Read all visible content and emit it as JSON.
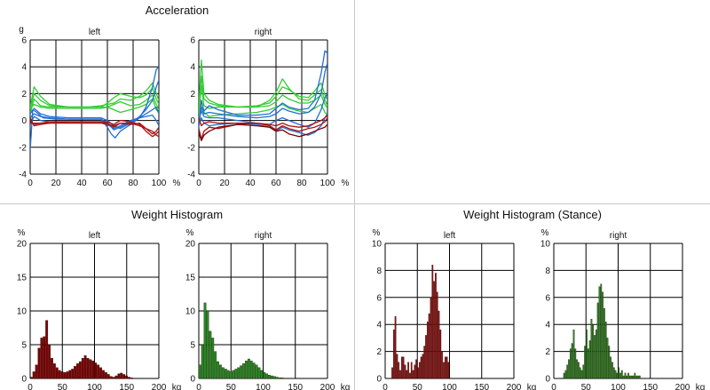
{
  "titles": {
    "acceleration": "Acceleration",
    "weight_histogram": "Weight Histogram",
    "weight_histogram_stance": "Weight Histogram (Stance)"
  },
  "colors": {
    "green": "#33cc33",
    "blue": "#1f6fd6",
    "red": "#aa1111",
    "dark_red": "#7a0000",
    "grid": "#000000"
  },
  "chart_data": [
    {
      "id": "accel-left",
      "type": "line",
      "title": "left",
      "ylabel": "g",
      "xunit": "%",
      "xlim": [
        0,
        100
      ],
      "ylim": [
        -4,
        6
      ],
      "xticks": [
        0,
        20,
        40,
        60,
        80,
        100
      ],
      "yticks": [
        -4,
        -2,
        0,
        2,
        4,
        6
      ],
      "grid": true,
      "series": [
        {
          "color": "#33cc33",
          "x": [
            0,
            3,
            8,
            15,
            30,
            45,
            55,
            60,
            65,
            70,
            78,
            85,
            90,
            95,
            98,
            100
          ],
          "y": [
            1.0,
            2.5,
            1.8,
            1.2,
            1.0,
            1.0,
            1.1,
            1.2,
            1.3,
            1.6,
            1.5,
            1.8,
            2.2,
            2.8,
            2.0,
            1.5
          ]
        },
        {
          "color": "#33cc33",
          "x": [
            0,
            3,
            8,
            15,
            30,
            45,
            55,
            60,
            65,
            70,
            78,
            85,
            90,
            95,
            98,
            100
          ],
          "y": [
            0.8,
            2.0,
            1.5,
            1.1,
            1.0,
            1.0,
            1.0,
            1.3,
            1.7,
            2.0,
            1.8,
            1.7,
            1.9,
            2.4,
            1.6,
            1.2
          ]
        },
        {
          "color": "#33cc33",
          "x": [
            0,
            3,
            8,
            15,
            30,
            45,
            55,
            60,
            65,
            70,
            78,
            85,
            90,
            95,
            98,
            100
          ],
          "y": [
            0.5,
            1.6,
            1.1,
            1.0,
            1.0,
            1.0,
            1.0,
            1.0,
            1.2,
            1.4,
            1.1,
            1.2,
            1.5,
            1.9,
            1.2,
            0.8
          ]
        },
        {
          "color": "#33cc33",
          "x": [
            0,
            3,
            8,
            15,
            30,
            45,
            55,
            60,
            65,
            70,
            78,
            85,
            90,
            95,
            98,
            100
          ],
          "y": [
            0.9,
            1.2,
            1.0,
            0.9,
            0.9,
            0.9,
            0.9,
            1.0,
            0.8,
            0.6,
            0.8,
            1.0,
            1.2,
            1.6,
            0.8,
            0.6
          ]
        },
        {
          "color": "#1f6fd6",
          "x": [
            0,
            2,
            5,
            10,
            20,
            40,
            55,
            60,
            63,
            66,
            70,
            78,
            85,
            90,
            95,
            98,
            100
          ],
          "y": [
            -2.2,
            0.8,
            0.6,
            0.2,
            0.1,
            0.1,
            0.1,
            -0.5,
            -1.0,
            -1.3,
            -0.8,
            -0.3,
            0.2,
            1.0,
            2.5,
            3.8,
            4.0
          ]
        },
        {
          "color": "#1f6fd6",
          "x": [
            0,
            3,
            8,
            15,
            30,
            45,
            55,
            60,
            65,
            70,
            78,
            85,
            90,
            95,
            98,
            100
          ],
          "y": [
            0.5,
            0.9,
            0.5,
            0.3,
            0.2,
            0.2,
            0.2,
            0.0,
            -0.4,
            -0.6,
            -0.2,
            0.3,
            0.8,
            1.5,
            2.5,
            3.0
          ]
        },
        {
          "color": "#1f6fd6",
          "x": [
            0,
            3,
            8,
            15,
            30,
            45,
            55,
            60,
            65,
            70,
            78,
            85,
            90,
            95,
            98,
            100
          ],
          "y": [
            0.2,
            0.5,
            0.3,
            0.2,
            0.1,
            0.1,
            0.1,
            -0.2,
            -0.7,
            -0.5,
            -0.1,
            0.2,
            0.5,
            0.8,
            1.0,
            0.5
          ]
        },
        {
          "color": "#1f6fd6",
          "x": [
            0,
            3,
            8,
            15,
            30,
            45,
            55,
            60,
            65,
            70,
            78,
            85,
            90,
            95,
            98,
            100
          ],
          "y": [
            -0.3,
            0.3,
            0.0,
            -0.1,
            -0.1,
            -0.1,
            -0.1,
            -0.3,
            -0.6,
            -0.4,
            0.0,
            0.2,
            0.3,
            0.4,
            0.0,
            -0.4
          ]
        },
        {
          "color": "#aa1111",
          "x": [
            0,
            3,
            8,
            15,
            30,
            45,
            55,
            60,
            65,
            70,
            78,
            85,
            90,
            95,
            98,
            100
          ],
          "y": [
            0.2,
            -0.4,
            -0.3,
            -0.2,
            -0.1,
            -0.1,
            -0.1,
            -0.2,
            -0.5,
            -0.2,
            -0.3,
            -0.2,
            -0.6,
            -1.0,
            -0.8,
            -0.5
          ]
        },
        {
          "color": "#aa1111",
          "x": [
            0,
            3,
            8,
            15,
            30,
            45,
            55,
            60,
            65,
            70,
            78,
            85,
            90,
            95,
            98,
            100
          ],
          "y": [
            0.0,
            -0.3,
            -0.2,
            -0.1,
            -0.1,
            -0.1,
            -0.1,
            -0.1,
            -0.3,
            0.0,
            -0.1,
            -0.3,
            -0.8,
            -1.2,
            -1.0,
            -0.8
          ]
        },
        {
          "color": "#aa1111",
          "x": [
            0,
            3,
            8,
            15,
            30,
            45,
            55,
            60,
            65,
            70,
            78,
            85,
            90,
            95,
            98,
            100
          ],
          "y": [
            -0.2,
            -0.2,
            -0.2,
            -0.2,
            -0.2,
            -0.2,
            -0.2,
            -0.3,
            -0.4,
            -0.2,
            -0.2,
            -0.4,
            -0.6,
            -0.8,
            -1.1,
            -1.2
          ]
        }
      ]
    },
    {
      "id": "accel-right",
      "type": "line",
      "title": "right",
      "ylabel": "",
      "xunit": "%",
      "xlim": [
        0,
        100
      ],
      "ylim": [
        -4,
        6
      ],
      "xticks": [
        0,
        20,
        40,
        60,
        80,
        100
      ],
      "yticks": [
        -4,
        -2,
        0,
        2,
        4,
        6
      ],
      "grid": true,
      "series": [
        {
          "color": "#33cc33",
          "x": [
            0,
            2,
            4,
            8,
            15,
            30,
            45,
            55,
            60,
            65,
            70,
            78,
            85,
            90,
            95,
            98,
            100
          ],
          "y": [
            1.0,
            4.5,
            2.0,
            1.5,
            1.2,
            1.0,
            1.1,
            1.3,
            1.8,
            2.5,
            2.3,
            1.8,
            1.7,
            2.2,
            2.8,
            1.9,
            1.5
          ]
        },
        {
          "color": "#33cc33",
          "x": [
            0,
            2,
            4,
            8,
            15,
            30,
            45,
            55,
            60,
            65,
            70,
            78,
            85,
            90,
            95,
            98,
            100
          ],
          "y": [
            0.8,
            3.3,
            1.6,
            1.3,
            1.1,
            1.0,
            1.0,
            1.5,
            2.1,
            3.1,
            2.4,
            1.6,
            1.5,
            1.9,
            2.3,
            1.5,
            1.1
          ]
        },
        {
          "color": "#33cc33",
          "x": [
            0,
            2,
            4,
            8,
            15,
            30,
            45,
            55,
            60,
            65,
            70,
            78,
            85,
            90,
            95,
            98,
            100
          ],
          "y": [
            0.5,
            2.6,
            1.1,
            0.9,
            1.0,
            1.0,
            1.0,
            1.1,
            1.4,
            1.9,
            1.6,
            1.3,
            1.3,
            1.5,
            1.9,
            1.2,
            0.9
          ]
        },
        {
          "color": "#33cc33",
          "x": [
            0,
            2,
            4,
            8,
            15,
            30,
            45,
            55,
            60,
            65,
            70,
            78,
            85,
            90,
            95,
            98,
            100
          ],
          "y": [
            0.2,
            1.5,
            0.6,
            0.3,
            0.4,
            0.5,
            0.6,
            0.8,
            1.0,
            1.2,
            0.9,
            0.7,
            0.6,
            0.9,
            1.2,
            0.6,
            0.4
          ]
        },
        {
          "color": "#1f6fd6",
          "x": [
            0,
            2,
            4,
            8,
            15,
            30,
            45,
            55,
            60,
            65,
            70,
            78,
            85,
            90,
            95,
            98,
            100
          ],
          "y": [
            -0.5,
            1.5,
            0.7,
            1.1,
            0.8,
            0.4,
            0.4,
            0.5,
            0.9,
            1.3,
            1.0,
            0.8,
            0.9,
            1.5,
            3.5,
            5.2,
            5.0
          ]
        },
        {
          "color": "#1f6fd6",
          "x": [
            0,
            2,
            4,
            8,
            15,
            30,
            45,
            55,
            60,
            65,
            70,
            78,
            85,
            90,
            95,
            98,
            100
          ],
          "y": [
            -0.3,
            1.0,
            0.5,
            0.6,
            0.5,
            0.3,
            0.2,
            0.3,
            0.5,
            0.9,
            0.7,
            0.5,
            0.6,
            1.0,
            2.0,
            3.6,
            4.3
          ]
        },
        {
          "color": "#1f6fd6",
          "x": [
            0,
            2,
            4,
            8,
            15,
            30,
            45,
            55,
            60,
            65,
            70,
            78,
            85,
            90,
            95,
            98,
            100
          ],
          "y": [
            0.0,
            0.7,
            0.3,
            0.2,
            0.2,
            0.0,
            -0.2,
            -0.3,
            0.0,
            0.2,
            0.0,
            -0.3,
            -0.5,
            -0.2,
            0.8,
            1.7,
            2.0
          ]
        },
        {
          "color": "#1f6fd6",
          "x": [
            0,
            2,
            4,
            8,
            15,
            30,
            45,
            55,
            60,
            65,
            70,
            78,
            85,
            90,
            95,
            98,
            100
          ],
          "y": [
            -0.4,
            0.2,
            -0.2,
            -0.4,
            -0.3,
            -0.2,
            -0.3,
            -0.5,
            -0.8,
            -0.5,
            -0.7,
            -0.9,
            -1.1,
            -0.9,
            -0.4,
            0.2,
            0.5
          ]
        },
        {
          "color": "#aa1111",
          "x": [
            0,
            2,
            4,
            8,
            15,
            30,
            45,
            55,
            60,
            65,
            70,
            78,
            85,
            90,
            95,
            98,
            100
          ],
          "y": [
            -0.6,
            -1.4,
            -0.8,
            -0.5,
            -0.6,
            -0.3,
            -0.2,
            -0.4,
            -0.7,
            -0.4,
            -0.6,
            -0.8,
            -0.6,
            -0.5,
            -0.3,
            -0.1,
            0.2
          ]
        },
        {
          "color": "#aa1111",
          "x": [
            0,
            2,
            4,
            8,
            15,
            30,
            45,
            55,
            60,
            65,
            70,
            78,
            85,
            90,
            95,
            98,
            100
          ],
          "y": [
            0.2,
            -0.4,
            -0.2,
            -0.1,
            -0.2,
            -0.2,
            -0.2,
            -0.3,
            -0.4,
            -0.2,
            -0.4,
            -0.5,
            -0.4,
            -0.2,
            0.0,
            0.2,
            0.4
          ]
        },
        {
          "color": "#7a0000",
          "x": [
            0,
            2,
            4,
            8,
            15,
            30,
            45,
            55,
            60,
            65,
            70,
            78,
            85,
            90,
            95,
            98,
            100
          ],
          "y": [
            -0.9,
            -1.5,
            -1.1,
            -0.8,
            -0.5,
            -0.3,
            -0.4,
            -0.5,
            -0.8,
            -0.7,
            -1.0,
            -1.2,
            -1.0,
            -0.8,
            -0.6,
            -0.5,
            -0.3
          ]
        }
      ]
    },
    {
      "id": "wh-left",
      "type": "bar",
      "title": "left",
      "ylabel": "%",
      "xunit": "kg",
      "xlim": [
        0,
        200
      ],
      "ylim": [
        0,
        20
      ],
      "xticks": [
        0,
        50,
        100,
        150,
        200
      ],
      "yticks": [
        0,
        5,
        10,
        15,
        20
      ],
      "grid": true,
      "color": "#7a0000",
      "bin_start": 0,
      "bin_width": 4,
      "values": [
        0.2,
        1.0,
        2.0,
        4.5,
        6.0,
        6.2,
        8.6,
        5.0,
        3.0,
        2.2,
        1.6,
        1.2,
        1.0,
        0.9,
        1.0,
        1.2,
        1.4,
        1.8,
        2.2,
        2.5,
        3.0,
        3.4,
        3.0,
        2.8,
        2.6,
        2.3,
        2.0,
        1.6,
        1.2,
        0.9,
        0.6,
        0.3,
        0.2,
        0.4,
        0.7,
        0.8,
        0.6,
        0.4,
        0.2,
        0.1
      ]
    },
    {
      "id": "wh-right",
      "type": "bar",
      "title": "right",
      "ylabel": "%",
      "xunit": "kg",
      "xlim": [
        0,
        200
      ],
      "ylim": [
        0,
        20
      ],
      "xticks": [
        0,
        50,
        100,
        150,
        200
      ],
      "yticks": [
        0,
        5,
        10,
        15,
        20
      ],
      "grid": true,
      "color": "#228b22",
      "bin_start": 0,
      "bin_width": 4,
      "values": [
        2.0,
        5.0,
        11.2,
        10.0,
        7.0,
        6.0,
        4.0,
        2.5,
        2.0,
        1.6,
        1.4,
        1.2,
        1.0,
        1.2,
        1.4,
        1.6,
        1.9,
        2.2,
        2.6,
        2.9,
        2.6,
        2.3,
        2.0,
        1.6,
        1.2,
        0.9,
        0.7,
        0.5,
        0.4,
        0.3,
        0.2,
        0.1,
        0.1
      ]
    },
    {
      "id": "whs-left",
      "type": "bar",
      "title": "left",
      "ylabel": "%",
      "xunit": "kg",
      "xlim": [
        0,
        200
      ],
      "ylim": [
        0,
        10
      ],
      "xticks": [
        0,
        50,
        100,
        150,
        200
      ],
      "yticks": [
        0,
        2,
        4,
        6,
        8,
        10
      ],
      "grid": true,
      "color": "#8b1010",
      "bin_start": 0,
      "bin_width": 2.5,
      "values": [
        0,
        0,
        0,
        0,
        0.8,
        3.6,
        4.6,
        1.8,
        1.2,
        0.6,
        1.6,
        1.6,
        1.0,
        0.6,
        1.2,
        0.4,
        1.2,
        0.6,
        1.0,
        1.4,
        0.8,
        1.2,
        1.6,
        1.8,
        2.4,
        3.2,
        4.2,
        4.8,
        6.0,
        8.4,
        7.2,
        7.8,
        6.4,
        5.0,
        3.6,
        2.0,
        1.2,
        1.6,
        1.6,
        1.2
      ]
    },
    {
      "id": "whs-right",
      "type": "bar",
      "title": "right",
      "ylabel": "%",
      "xunit": "kg",
      "xlim": [
        0,
        200
      ],
      "ylim": [
        0,
        10
      ],
      "xticks": [
        0,
        50,
        100,
        150,
        200
      ],
      "yticks": [
        0,
        2,
        4,
        6,
        8,
        10
      ],
      "grid": true,
      "color": "#228b22",
      "bin_start": 0,
      "bin_width": 2.5,
      "values": [
        0,
        0,
        0,
        0,
        0,
        0,
        0.4,
        0.6,
        1.0,
        1.4,
        2.2,
        2.6,
        3.6,
        2.2,
        1.4,
        1.2,
        0.8,
        0.6,
        1.0,
        2.4,
        3.6,
        2.2,
        2.8,
        4.4,
        4.0,
        3.2,
        3.6,
        5.6,
        6.8,
        7.0,
        6.4,
        5.2,
        4.2,
        3.0,
        2.4,
        1.6,
        1.2,
        0.8,
        0.6,
        0.4,
        0.8,
        0.4,
        0.6,
        0.2,
        0.4,
        0.2,
        0.4,
        0.2,
        0.2,
        0.2,
        0.4,
        0.2,
        0.2,
        0.2
      ]
    }
  ]
}
